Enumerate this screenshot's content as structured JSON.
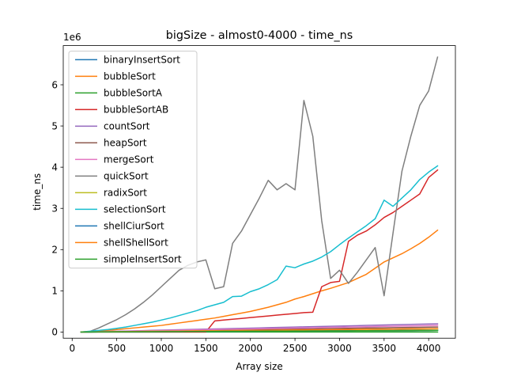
{
  "chart_data": {
    "type": "line",
    "title": "bigSize - almost0-4000 - time_ns",
    "xlabel": "Array size",
    "ylabel": "time_ns",
    "y_offset_label": "1e6",
    "xlim": [
      -100,
      4300
    ],
    "ylim": [
      -150000,
      6950000
    ],
    "x_ticks": [
      0,
      500,
      1000,
      1500,
      2000,
      2500,
      3000,
      3500,
      4000
    ],
    "y_ticks": [
      0,
      1000000,
      2000000,
      3000000,
      4000000,
      5000000,
      6000000
    ],
    "y_tick_labels": [
      "0",
      "1",
      "2",
      "3",
      "4",
      "5",
      "6"
    ],
    "grid": false,
    "legend_position": "top-left",
    "x": [
      100,
      200,
      300,
      400,
      500,
      600,
      700,
      800,
      900,
      1000,
      1100,
      1200,
      1300,
      1400,
      1500,
      1600,
      1700,
      1800,
      1900,
      2000,
      2100,
      2200,
      2300,
      2400,
      2500,
      2600,
      2700,
      2800,
      2900,
      3000,
      3100,
      3200,
      3300,
      3400,
      3500,
      3600,
      3700,
      3800,
      3900,
      4000,
      4100
    ],
    "series": [
      {
        "name": "binaryInsertSort",
        "color": "#1f77b4",
        "values": [
          0,
          1000,
          2000,
          3000,
          4000,
          5000,
          6000,
          7000,
          8000,
          9000,
          10000,
          11000,
          12000,
          13000,
          14000,
          15000,
          16000,
          17000,
          18000,
          19000,
          20000,
          21000,
          22000,
          23000,
          24000,
          25000,
          26000,
          27000,
          28000,
          29000,
          30000,
          31000,
          32000,
          33000,
          34000,
          35000,
          36000,
          37000,
          38000,
          39000,
          40000
        ]
      },
      {
        "name": "bubbleSort",
        "color": "#ff7f0e",
        "values": [
          0,
          10000,
          25000,
          40000,
          60000,
          80000,
          100000,
          120000,
          140000,
          160000,
          190000,
          220000,
          250000,
          280000,
          310000,
          340000,
          380000,
          420000,
          460000,
          500000,
          550000,
          600000,
          660000,
          720000,
          800000,
          860000,
          930000,
          1000000,
          1060000,
          1130000,
          1200000,
          1300000,
          1400000,
          1550000,
          1700000,
          1800000,
          1900000,
          2020000,
          2150000,
          2300000,
          2470000
        ]
      },
      {
        "name": "bubbleSortA",
        "color": "#2ca02c",
        "values": [
          0,
          0,
          0,
          0,
          0,
          0,
          0,
          0,
          0,
          0,
          0,
          0,
          0,
          0,
          0,
          0,
          0,
          0,
          0,
          0,
          0,
          0,
          0,
          0,
          0,
          0,
          0,
          0,
          0,
          0,
          0,
          0,
          0,
          0,
          0,
          0,
          0,
          0,
          0,
          0,
          0
        ]
      },
      {
        "name": "bubbleSortAB",
        "color": "#d62728",
        "values": [
          0,
          0,
          0,
          0,
          0,
          0,
          0,
          0,
          0,
          0,
          0,
          0,
          0,
          0,
          0,
          270000,
          290000,
          310000,
          330000,
          350000,
          370000,
          390000,
          410000,
          430000,
          450000,
          470000,
          480000,
          1100000,
          1200000,
          1230000,
          2200000,
          2350000,
          2450000,
          2600000,
          2780000,
          2900000,
          3050000,
          3200000,
          3350000,
          3750000,
          3930000
        ]
      },
      {
        "name": "countSort",
        "color": "#9467bd",
        "values": [
          0,
          5000,
          10000,
          15000,
          20000,
          25000,
          30000,
          35000,
          40000,
          45000,
          50000,
          55000,
          60000,
          65000,
          70000,
          75000,
          80000,
          85000,
          90000,
          95000,
          100000,
          105000,
          110000,
          115000,
          120000,
          125000,
          130000,
          135000,
          140000,
          145000,
          150000,
          155000,
          160000,
          165000,
          170000,
          175000,
          180000,
          185000,
          190000,
          195000,
          200000
        ]
      },
      {
        "name": "heapSort",
        "color": "#8c564b",
        "values": [
          0,
          3000,
          6000,
          9000,
          12000,
          15000,
          18000,
          21000,
          24000,
          27000,
          30000,
          33000,
          36000,
          39000,
          42000,
          45000,
          48000,
          51000,
          54000,
          57000,
          60000,
          63000,
          66000,
          69000,
          72000,
          75000,
          78000,
          81000,
          84000,
          87000,
          90000,
          93000,
          96000,
          99000,
          102000,
          105000,
          108000,
          111000,
          114000,
          117000,
          120000
        ]
      },
      {
        "name": "mergeSort",
        "color": "#e377c2",
        "values": [
          0,
          4000,
          8000,
          12000,
          16000,
          20000,
          24000,
          28000,
          32000,
          36000,
          40000,
          44000,
          48000,
          52000,
          56000,
          60000,
          64000,
          68000,
          72000,
          76000,
          80000,
          84000,
          88000,
          92000,
          96000,
          100000,
          104000,
          108000,
          112000,
          116000,
          120000,
          124000,
          128000,
          132000,
          136000,
          140000,
          144000,
          148000,
          152000,
          156000,
          160000
        ]
      },
      {
        "name": "quickSort",
        "color": "#7f7f7f",
        "values": [
          0,
          15000,
          100000,
          200000,
          300000,
          420000,
          560000,
          720000,
          900000,
          1100000,
          1300000,
          1500000,
          1620000,
          1700000,
          1750000,
          1050000,
          1100000,
          2150000,
          2450000,
          2850000,
          3250000,
          3680000,
          3450000,
          3600000,
          3450000,
          5620000,
          4750000,
          2700000,
          1300000,
          1500000,
          1180000,
          1450000,
          1750000,
          2050000,
          880000,
          2400000,
          3900000,
          4750000,
          5500000,
          5850000,
          6670000
        ]
      },
      {
        "name": "radixSort",
        "color": "#bcbd22",
        "values": [
          0,
          2000,
          4000,
          6000,
          8000,
          10000,
          12000,
          14000,
          16000,
          18000,
          20000,
          22000,
          24000,
          26000,
          28000,
          30000,
          32000,
          34000,
          36000,
          38000,
          40000,
          42000,
          44000,
          46000,
          48000,
          50000,
          52000,
          54000,
          56000,
          58000,
          60000,
          62000,
          64000,
          66000,
          68000,
          70000,
          72000,
          74000,
          76000,
          78000,
          80000
        ]
      },
      {
        "name": "selectionSort",
        "color": "#17becf",
        "values": [
          0,
          20000,
          40000,
          60000,
          90000,
          120000,
          160000,
          200000,
          240000,
          290000,
          340000,
          400000,
          460000,
          520000,
          600000,
          660000,
          720000,
          860000,
          870000,
          980000,
          1050000,
          1150000,
          1270000,
          1600000,
          1560000,
          1650000,
          1720000,
          1820000,
          1950000,
          2120000,
          2280000,
          2430000,
          2580000,
          2750000,
          3200000,
          3050000,
          3250000,
          3450000,
          3700000,
          3880000,
          4030000
        ]
      },
      {
        "name": "shellCiurSort",
        "color": "#1f77b4",
        "values": [
          0,
          1000,
          2000,
          3000,
          4000,
          5000,
          6000,
          7000,
          8000,
          9000,
          10000,
          11000,
          12000,
          13000,
          14000,
          15000,
          16000,
          17000,
          18000,
          19000,
          20000,
          21000,
          22000,
          23000,
          24000,
          25000,
          26000,
          27000,
          28000,
          29000,
          30000,
          31000,
          32000,
          33000,
          34000,
          35000,
          36000,
          37000,
          38000,
          39000,
          40000
        ]
      },
      {
        "name": "shellShellSort",
        "color": "#ff7f0e",
        "values": [
          0,
          2000,
          4000,
          6000,
          8000,
          10000,
          12000,
          14000,
          16000,
          18000,
          20000,
          22000,
          24000,
          26000,
          28000,
          30000,
          32000,
          34000,
          36000,
          38000,
          40000,
          42000,
          44000,
          46000,
          48000,
          50000,
          52000,
          54000,
          56000,
          58000,
          60000,
          62000,
          64000,
          66000,
          68000,
          70000,
          72000,
          74000,
          76000,
          78000,
          80000
        ]
      },
      {
        "name": "simpleInsertSort",
        "color": "#2ca02c",
        "values": [
          0,
          1000,
          2000,
          3000,
          4000,
          5000,
          6000,
          7000,
          8000,
          9000,
          10000,
          11000,
          12000,
          13000,
          14000,
          15000,
          16000,
          17000,
          18000,
          19000,
          20000,
          21000,
          22000,
          23000,
          24000,
          25000,
          26000,
          27000,
          28000,
          29000,
          30000,
          31000,
          32000,
          33000,
          34000,
          35000,
          36000,
          37000,
          38000,
          39000,
          40000
        ]
      }
    ]
  }
}
